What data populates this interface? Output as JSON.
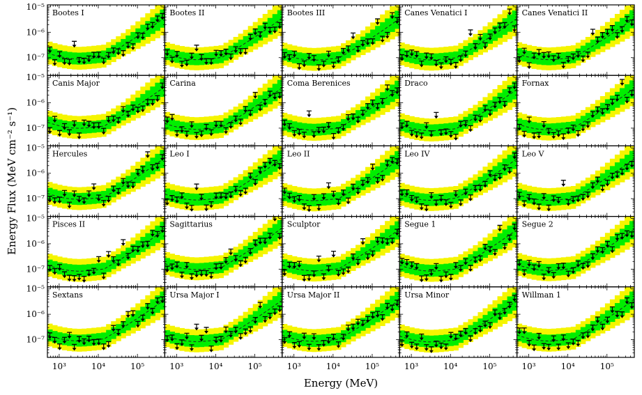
{
  "chart_data": {
    "type": "scatter",
    "title": "",
    "xlabel": "Energy (MeV)",
    "ylabel": "Energy Flux (MeV cm⁻² s⁻¹)",
    "xscale": "log",
    "yscale": "log",
    "xlim": [
      500,
      500000
    ],
    "ylim": [
      2e-08,
      1.2e-05
    ],
    "x_ticks": [
      {
        "value": 1000,
        "label": "10³"
      },
      {
        "value": 10000,
        "label": "10⁴"
      },
      {
        "value": 100000,
        "label": "10⁵"
      }
    ],
    "y_ticks": [
      {
        "value": 1e-07,
        "label": "10⁻⁷"
      },
      {
        "value": 1e-06,
        "label": "10⁻⁶"
      },
      {
        "value": 1e-05,
        "label": "10⁻⁵"
      }
    ],
    "band_colors": {
      "sigma1": "#00ee00",
      "sigma2": "#f5f500",
      "median_line": "#222222",
      "markers": "#000000"
    },
    "series_description": "Each panel shows 2σ (yellow) and 1σ (green) expected-sensitivity bands, a dashed median line, and downward-arrow upper limits at 24 energy bins.",
    "panels": [
      {
        "name": "Bootes I",
        "min_shift": 0.1,
        "scatter_seed": 11
      },
      {
        "name": "Bootes II",
        "min_shift": 0.0,
        "scatter_seed": 12
      },
      {
        "name": "Bootes III",
        "min_shift": -0.08,
        "scatter_seed": 13
      },
      {
        "name": "Canes Venatici I",
        "min_shift": -0.05,
        "scatter_seed": 14
      },
      {
        "name": "Canes Venatici II",
        "min_shift": 0.0,
        "scatter_seed": 15
      },
      {
        "name": "Canis Major",
        "min_shift": 0.3,
        "scatter_seed": 16
      },
      {
        "name": "Carina",
        "min_shift": 0.12,
        "scatter_seed": 17
      },
      {
        "name": "Coma Berenices",
        "min_shift": 0.0,
        "scatter_seed": 18
      },
      {
        "name": "Draco",
        "min_shift": -0.1,
        "scatter_seed": 19
      },
      {
        "name": "Fornax",
        "min_shift": 0.05,
        "scatter_seed": 20
      },
      {
        "name": "Hercules",
        "min_shift": 0.2,
        "scatter_seed": 21
      },
      {
        "name": "Leo I",
        "min_shift": 0.1,
        "scatter_seed": 22
      },
      {
        "name": "Leo II",
        "min_shift": 0.0,
        "scatter_seed": 23
      },
      {
        "name": "Leo IV",
        "min_shift": 0.05,
        "scatter_seed": 24
      },
      {
        "name": "Leo V",
        "min_shift": 0.05,
        "scatter_seed": 25
      },
      {
        "name": "Pisces II",
        "min_shift": 0.0,
        "scatter_seed": 26
      },
      {
        "name": "Sagittarius",
        "min_shift": 0.25,
        "scatter_seed": 27
      },
      {
        "name": "Sculptor",
        "min_shift": 0.05,
        "scatter_seed": 28
      },
      {
        "name": "Segue 1",
        "min_shift": 0.0,
        "scatter_seed": 29
      },
      {
        "name": "Segue 2",
        "min_shift": 0.1,
        "scatter_seed": 30
      },
      {
        "name": "Sextans",
        "min_shift": 0.1,
        "scatter_seed": 31
      },
      {
        "name": "Ursa Major I",
        "min_shift": 0.0,
        "scatter_seed": 32
      },
      {
        "name": "Ursa Major II",
        "min_shift": 0.05,
        "scatter_seed": 33
      },
      {
        "name": "Ursa Minor",
        "min_shift": -0.05,
        "scatter_seed": 34
      },
      {
        "name": "Willman 1",
        "min_shift": 0.1,
        "scatter_seed": 35
      }
    ]
  }
}
